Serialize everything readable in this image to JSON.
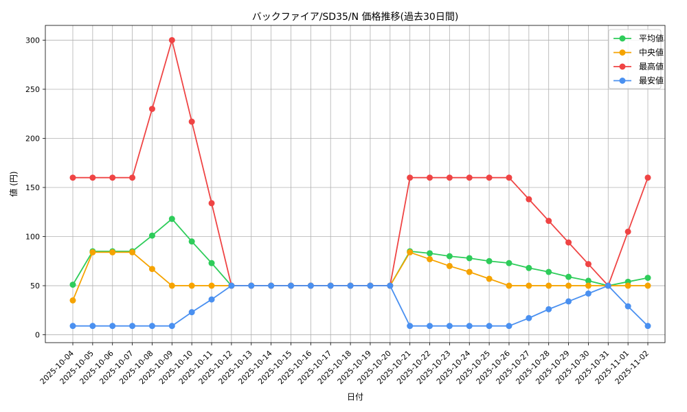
{
  "chart_data": {
    "type": "line",
    "title": "バックファイア/SD35/N 価格推移(過去30日間)",
    "xlabel": "日付",
    "ylabel": "値 (円)",
    "ylim": [
      -8,
      315
    ],
    "yticks": [
      0,
      50,
      100,
      150,
      200,
      250,
      300
    ],
    "grid": true,
    "legend_position": "top-right",
    "categories": [
      "2025-10-04",
      "2025-10-05",
      "2025-10-06",
      "2025-10-07",
      "2025-10-08",
      "2025-10-09",
      "2025-10-10",
      "2025-10-11",
      "2025-10-12",
      "2025-10-13",
      "2025-10-14",
      "2025-10-15",
      "2025-10-16",
      "2025-10-17",
      "2025-10-18",
      "2025-10-19",
      "2025-10-20",
      "2025-10-21",
      "2025-10-22",
      "2025-10-23",
      "2025-10-24",
      "2025-10-25",
      "2025-10-26",
      "2025-10-27",
      "2025-10-28",
      "2025-10-29",
      "2025-10-30",
      "2025-10-31",
      "2025-11-01",
      "2025-11-02"
    ],
    "series": [
      {
        "name": "平均値",
        "color": "#2ecc5a",
        "values": [
          51,
          85,
          85,
          85,
          101,
          118,
          95,
          73,
          50,
          50,
          50,
          50,
          50,
          50,
          50,
          50,
          50,
          85,
          83,
          80,
          78,
          75,
          73,
          68,
          64,
          59,
          55,
          50,
          54,
          58
        ]
      },
      {
        "name": "中央値",
        "color": "#f5a300",
        "values": [
          35,
          84,
          84,
          84,
          67,
          50,
          50,
          50,
          50,
          50,
          50,
          50,
          50,
          50,
          50,
          50,
          50,
          84,
          77,
          70,
          64,
          57,
          50,
          50,
          50,
          50,
          50,
          50,
          50,
          50
        ]
      },
      {
        "name": "最高値",
        "color": "#ef4444",
        "values": [
          160,
          160,
          160,
          160,
          230,
          300,
          217,
          134,
          50,
          50,
          50,
          50,
          50,
          50,
          50,
          50,
          50,
          160,
          160,
          160,
          160,
          160,
          160,
          138,
          116,
          94,
          72,
          50,
          105,
          160
        ]
      },
      {
        "name": "最安値",
        "color": "#4a90f0",
        "values": [
          9,
          9,
          9,
          9,
          9,
          9,
          23,
          36,
          50,
          50,
          50,
          50,
          50,
          50,
          50,
          50,
          50,
          9,
          9,
          9,
          9,
          9,
          9,
          17,
          26,
          34,
          42,
          50,
          29,
          9
        ]
      }
    ]
  }
}
